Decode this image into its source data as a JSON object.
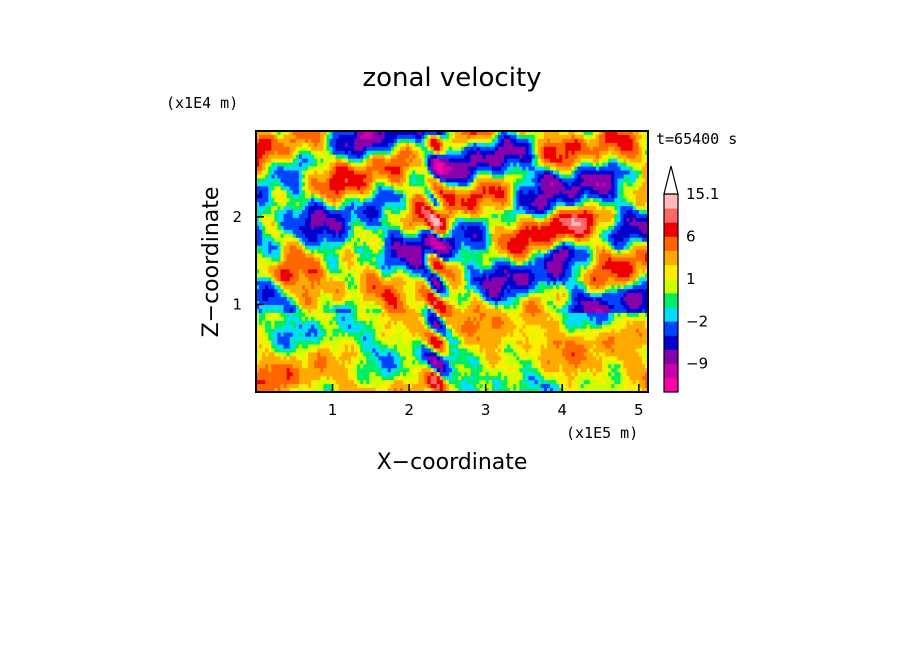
{
  "chart_data": {
    "type": "heatmap",
    "title": "zonal velocity",
    "xlabel": "X−coordinate",
    "ylabel": "Z−coordinate",
    "x_scale_label": "(x1E5 m)",
    "y_scale_label": "(x1E4 m)",
    "time_label": "t=65400 s",
    "xlim": [
      0,
      5.12
    ],
    "ylim": [
      0,
      2.98
    ],
    "x_ticks": [
      "1",
      "2",
      "3",
      "4",
      "5"
    ],
    "y_ticks": [
      "1",
      "2"
    ],
    "x_tick_values": [
      1,
      2,
      3,
      4,
      5
    ],
    "y_tick_values": [
      1,
      2
    ],
    "grid": false,
    "colorbar": {
      "labels": [
        "15.1",
        "6",
        "1",
        "−2",
        "−9"
      ],
      "label_levels": [
        15.1,
        6,
        1,
        -2,
        -9
      ],
      "min": -15,
      "max": 15.1,
      "extend_max": true,
      "levels": [
        -15,
        -12,
        -9,
        -6,
        -4,
        -2,
        -1,
        0,
        1,
        2,
        4,
        6,
        9,
        12,
        15.1
      ],
      "colors": [
        "#ff00aa",
        "#cc00aa",
        "#8800aa",
        "#0000cc",
        "#0044ff",
        "#00ddff",
        "#00ee66",
        "#ccff00",
        "#ffee00",
        "#ffaa00",
        "#ff6600",
        "#ee0000",
        "#ff6666",
        "#ffbbbb"
      ]
    }
  }
}
